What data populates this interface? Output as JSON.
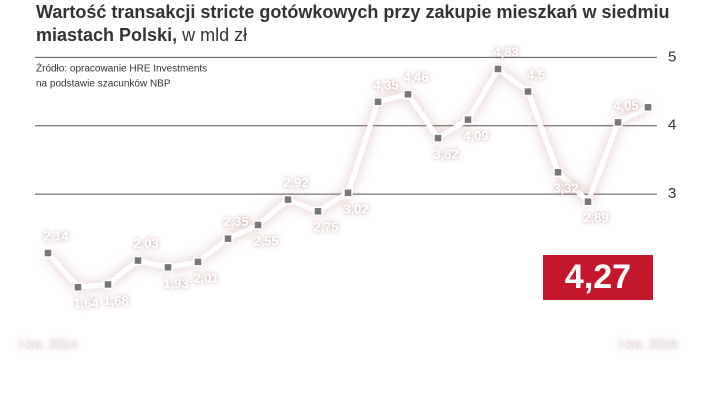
{
  "chart_data": {
    "type": "line",
    "title": "Wartość transakcji stricte gotówkowych przy zakupie mieszkań w siedmiu miastach Polski,",
    "subtitle": "w mld zł",
    "source": [
      "Źródło: opracowanie HRE Investments",
      "na podstawie szacunków NBP"
    ],
    "categories": [
      "I kw. 2014",
      null,
      null,
      null,
      null,
      null,
      null,
      null,
      null,
      null,
      null,
      null,
      null,
      null,
      null,
      null,
      null,
      null,
      null,
      null,
      "I kw. 2019"
    ],
    "series": [
      {
        "name": "Wartość transakcji",
        "color": "#ffffff",
        "values": [
          2.14,
          1.64,
          1.68,
          2.03,
          1.93,
          2.01,
          2.35,
          2.55,
          2.92,
          2.75,
          3.02,
          4.35,
          4.46,
          3.82,
          4.09,
          4.83,
          4.5,
          3.32,
          2.89,
          4.05,
          4.27
        ],
        "value_labels": [
          "2,14",
          "1,64",
          "1,68",
          "2,03",
          "1,93",
          "2,01",
          "2,35",
          "2,55",
          "2,92",
          "2,75",
          "3,02",
          "4,35",
          "4,46",
          "3,82",
          "4,09",
          "4,83",
          "4,5",
          "3,32",
          "2,89",
          "4,05",
          "4,27"
        ]
      }
    ],
    "highlight_color": "#c4172c",
    "ylim": [
      1,
      5.4
    ],
    "yticks": [
      3,
      4,
      5
    ],
    "grid": true
  }
}
